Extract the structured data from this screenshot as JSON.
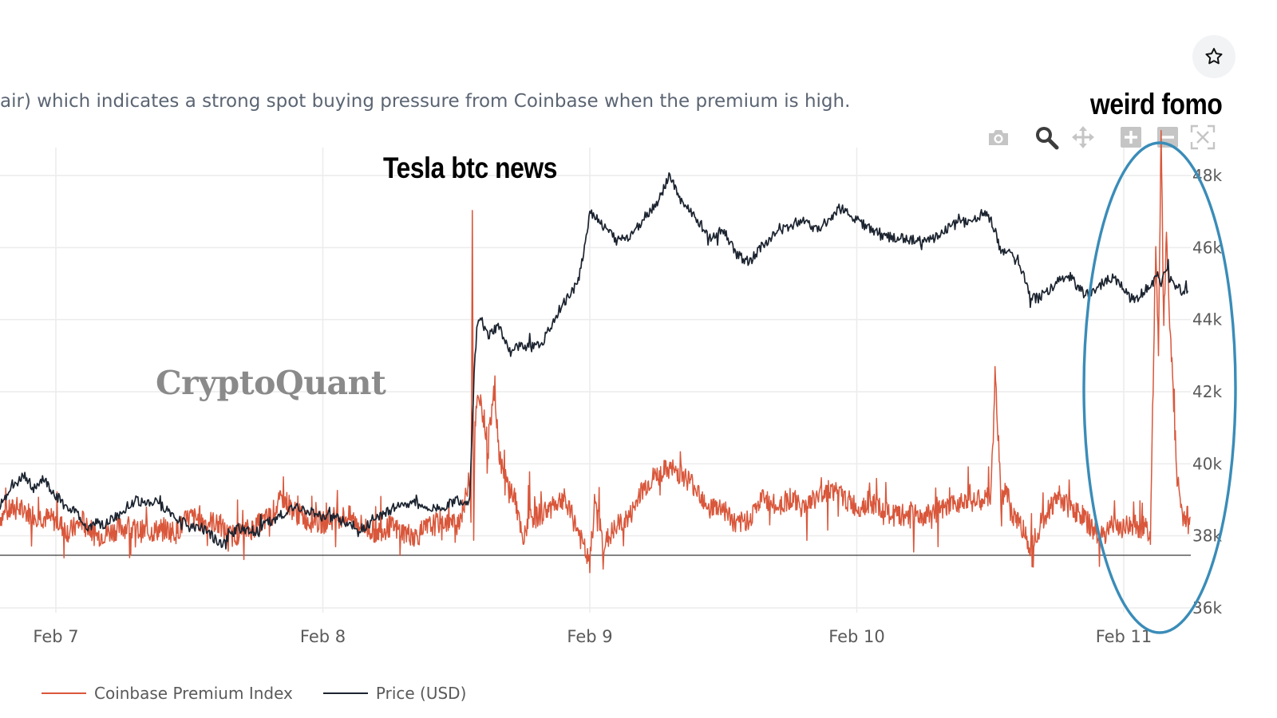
{
  "description": "air) which indicates a strong spot buying pressure from Coinbase when the premium is high.",
  "annotations": {
    "tesla": "Tesla btc news",
    "fomo": "weird fomo"
  },
  "watermark": "CryptoQuant",
  "icons": {
    "favorite": "star-icon",
    "camera": "camera-icon",
    "zoom": "zoom-icon",
    "pan": "pan-icon",
    "zoom_in": "zoom-in-icon",
    "zoom_out": "zoom-out-icon",
    "autoscale": "autoscale-icon"
  },
  "colors": {
    "premium": "#d9573b",
    "price": "#1c2430",
    "grid": "#ececec",
    "circle": "#3a8cb8",
    "axis_text": "#5a5a5a"
  },
  "chart_data": {
    "type": "line",
    "x_ticks": [
      "Feb 7",
      "Feb 8",
      "Feb 9",
      "Feb 10",
      "Feb 11"
    ],
    "y_ticks": [
      "48k",
      "46k",
      "44k",
      "42k",
      "40k",
      "38k",
      "36k"
    ],
    "y_tick_values": [
      48000,
      46000,
      44000,
      42000,
      40000,
      38000,
      36000
    ],
    "ylim": [
      35600,
      48300
    ],
    "x_range_days": [
      6.79,
      11.25
    ],
    "grid": true,
    "legend_position": "bottom-left",
    "series": [
      {
        "name": "Coinbase Premium Index",
        "axis": "none-shown",
        "points": [
          [
            6.79,
            0.2
          ],
          [
            6.85,
            0.25
          ],
          [
            6.9,
            0.22
          ],
          [
            6.95,
            0.2
          ],
          [
            7.0,
            0.18
          ],
          [
            7.05,
            0.12
          ],
          [
            7.1,
            0.18
          ],
          [
            7.15,
            0.1
          ],
          [
            7.2,
            0.12
          ],
          [
            7.25,
            0.15
          ],
          [
            7.3,
            0.13
          ],
          [
            7.35,
            0.12
          ],
          [
            7.4,
            0.14
          ],
          [
            7.45,
            0.12
          ],
          [
            7.5,
            0.2
          ],
          [
            7.55,
            0.18
          ],
          [
            7.6,
            0.17
          ],
          [
            7.65,
            0.1
          ],
          [
            7.7,
            0.12
          ],
          [
            7.75,
            0.15
          ],
          [
            7.8,
            0.2
          ],
          [
            7.85,
            0.3
          ],
          [
            7.9,
            0.22
          ],
          [
            7.95,
            0.18
          ],
          [
            8.0,
            0.17
          ],
          [
            8.05,
            0.2
          ],
          [
            8.1,
            0.2
          ],
          [
            8.15,
            0.15
          ],
          [
            8.2,
            0.12
          ],
          [
            8.25,
            0.15
          ],
          [
            8.3,
            0.12
          ],
          [
            8.35,
            0.1
          ],
          [
            8.4,
            0.15
          ],
          [
            8.45,
            0.18
          ],
          [
            8.5,
            0.16
          ],
          [
            8.53,
            0.25
          ],
          [
            8.55,
            0.45
          ],
          [
            8.555,
            0.2
          ],
          [
            8.56,
            1.8
          ],
          [
            8.565,
            0.1
          ],
          [
            8.57,
            0.7
          ],
          [
            8.58,
            0.8
          ],
          [
            8.6,
            0.75
          ],
          [
            8.62,
            0.55
          ],
          [
            8.64,
            0.9
          ],
          [
            8.66,
            0.55
          ],
          [
            8.68,
            0.4
          ],
          [
            8.7,
            0.35
          ],
          [
            8.72,
            0.3
          ],
          [
            8.75,
            0.05
          ],
          [
            8.77,
            0.2
          ],
          [
            8.8,
            0.2
          ],
          [
            8.85,
            0.25
          ],
          [
            8.9,
            0.3
          ],
          [
            8.95,
            0.15
          ],
          [
            9.0,
            -0.05
          ],
          [
            9.02,
            0.3
          ],
          [
            9.05,
            0.05
          ],
          [
            9.1,
            0.15
          ],
          [
            9.15,
            0.2
          ],
          [
            9.2,
            0.35
          ],
          [
            9.25,
            0.42
          ],
          [
            9.3,
            0.45
          ],
          [
            9.35,
            0.42
          ],
          [
            9.4,
            0.35
          ],
          [
            9.45,
            0.25
          ],
          [
            9.5,
            0.25
          ],
          [
            9.55,
            0.15
          ],
          [
            9.6,
            0.2
          ],
          [
            9.65,
            0.3
          ],
          [
            9.7,
            0.25
          ],
          [
            9.75,
            0.3
          ],
          [
            9.8,
            0.25
          ],
          [
            9.85,
            0.3
          ],
          [
            9.9,
            0.35
          ],
          [
            9.95,
            0.3
          ],
          [
            10.0,
            0.25
          ],
          [
            10.05,
            0.28
          ],
          [
            10.1,
            0.22
          ],
          [
            10.15,
            0.2
          ],
          [
            10.2,
            0.22
          ],
          [
            10.25,
            0.2
          ],
          [
            10.3,
            0.22
          ],
          [
            10.35,
            0.25
          ],
          [
            10.4,
            0.3
          ],
          [
            10.45,
            0.28
          ],
          [
            10.5,
            0.3
          ],
          [
            10.52,
            0.9
          ],
          [
            10.54,
            0.3
          ],
          [
            10.56,
            0.35
          ],
          [
            10.58,
            0.2
          ],
          [
            10.6,
            0.2
          ],
          [
            10.65,
            0.05
          ],
          [
            10.7,
            0.2
          ],
          [
            10.75,
            0.3
          ],
          [
            10.8,
            0.25
          ],
          [
            10.85,
            0.2
          ],
          [
            10.9,
            0.1
          ],
          [
            10.95,
            0.15
          ],
          [
            11.0,
            0.15
          ],
          [
            11.05,
            0.15
          ],
          [
            11.08,
            0.15
          ],
          [
            11.1,
            0.1
          ],
          [
            11.11,
            0.9
          ],
          [
            11.12,
            1.6
          ],
          [
            11.13,
            1.1
          ],
          [
            11.14,
            2.2
          ],
          [
            11.15,
            1.2
          ],
          [
            11.16,
            1.7
          ],
          [
            11.17,
            1.3
          ],
          [
            11.2,
            0.4
          ],
          [
            11.22,
            0.2
          ],
          [
            11.25,
            0.2
          ]
        ]
      },
      {
        "name": "Price (USD)",
        "axis": "right",
        "points": [
          [
            6.79,
            38850
          ],
          [
            6.82,
            39200
          ],
          [
            6.85,
            39400
          ],
          [
            6.88,
            39700
          ],
          [
            6.92,
            39300
          ],
          [
            6.95,
            39600
          ],
          [
            6.97,
            39400
          ],
          [
            7.0,
            39100
          ],
          [
            7.05,
            38800
          ],
          [
            7.08,
            38600
          ],
          [
            7.12,
            38200
          ],
          [
            7.15,
            38400
          ],
          [
            7.18,
            38300
          ],
          [
            7.22,
            38500
          ],
          [
            7.25,
            38700
          ],
          [
            7.3,
            39000
          ],
          [
            7.34,
            38900
          ],
          [
            7.38,
            38900
          ],
          [
            7.42,
            38700
          ],
          [
            7.45,
            38500
          ],
          [
            7.5,
            38300
          ],
          [
            7.55,
            38200
          ],
          [
            7.6,
            37900
          ],
          [
            7.62,
            37800
          ],
          [
            7.65,
            38000
          ],
          [
            7.68,
            38200
          ],
          [
            7.72,
            38200
          ],
          [
            7.75,
            38100
          ],
          [
            7.8,
            38400
          ],
          [
            7.85,
            38600
          ],
          [
            7.9,
            38800
          ],
          [
            7.95,
            38700
          ],
          [
            8.0,
            38500
          ],
          [
            8.05,
            38500
          ],
          [
            8.1,
            38300
          ],
          [
            8.15,
            38200
          ],
          [
            8.2,
            38500
          ],
          [
            8.25,
            38700
          ],
          [
            8.3,
            38900
          ],
          [
            8.35,
            38900
          ],
          [
            8.4,
            38700
          ],
          [
            8.45,
            38800
          ],
          [
            8.5,
            39000
          ],
          [
            8.53,
            38900
          ],
          [
            8.55,
            39100
          ],
          [
            8.56,
            41200
          ],
          [
            8.57,
            43000
          ],
          [
            8.58,
            44000
          ],
          [
            8.6,
            43900
          ],
          [
            8.62,
            43500
          ],
          [
            8.64,
            43700
          ],
          [
            8.66,
            43800
          ],
          [
            8.68,
            43500
          ],
          [
            8.7,
            43100
          ],
          [
            8.75,
            43300
          ],
          [
            8.8,
            43200
          ],
          [
            8.83,
            43500
          ],
          [
            8.86,
            43900
          ],
          [
            8.9,
            44500
          ],
          [
            8.93,
            44700
          ],
          [
            8.96,
            45200
          ],
          [
            8.98,
            46000
          ],
          [
            9.0,
            47000
          ],
          [
            9.03,
            46800
          ],
          [
            9.06,
            46500
          ],
          [
            9.1,
            46200
          ],
          [
            9.15,
            46300
          ],
          [
            9.2,
            46800
          ],
          [
            9.25,
            47200
          ],
          [
            9.28,
            47700
          ],
          [
            9.3,
            48000
          ],
          [
            9.32,
            47600
          ],
          [
            9.35,
            47200
          ],
          [
            9.4,
            46800
          ],
          [
            9.45,
            46300
          ],
          [
            9.5,
            46500
          ],
          [
            9.55,
            45800
          ],
          [
            9.6,
            45600
          ],
          [
            9.65,
            46100
          ],
          [
            9.7,
            46400
          ],
          [
            9.75,
            46600
          ],
          [
            9.8,
            46800
          ],
          [
            9.85,
            46500
          ],
          [
            9.9,
            46800
          ],
          [
            9.93,
            47100
          ],
          [
            9.96,
            47000
          ],
          [
            10.0,
            46800
          ],
          [
            10.05,
            46500
          ],
          [
            10.1,
            46300
          ],
          [
            10.15,
            46300
          ],
          [
            10.2,
            46200
          ],
          [
            10.25,
            46200
          ],
          [
            10.3,
            46300
          ],
          [
            10.35,
            46600
          ],
          [
            10.4,
            46700
          ],
          [
            10.45,
            46800
          ],
          [
            10.47,
            47000
          ],
          [
            10.5,
            46800
          ],
          [
            10.52,
            46400
          ],
          [
            10.54,
            45800
          ],
          [
            10.56,
            45900
          ],
          [
            10.6,
            45600
          ],
          [
            10.63,
            45100
          ],
          [
            10.65,
            44600
          ],
          [
            10.68,
            44600
          ],
          [
            10.72,
            44800
          ],
          [
            10.76,
            45100
          ],
          [
            10.8,
            45200
          ],
          [
            10.83,
            44900
          ],
          [
            10.86,
            44700
          ],
          [
            10.9,
            44900
          ],
          [
            10.94,
            45100
          ],
          [
            10.98,
            45100
          ],
          [
            11.02,
            44600
          ],
          [
            11.05,
            44600
          ],
          [
            11.08,
            44800
          ],
          [
            11.1,
            45000
          ],
          [
            11.12,
            45100
          ],
          [
            11.14,
            45000
          ],
          [
            11.16,
            45400
          ],
          [
            11.18,
            45000
          ],
          [
            11.2,
            44900
          ],
          [
            11.22,
            44800
          ],
          [
            11.24,
            44800
          ]
        ]
      }
    ]
  },
  "legend": {
    "premium": "Coinbase Premium Index",
    "price": "Price (USD)"
  }
}
